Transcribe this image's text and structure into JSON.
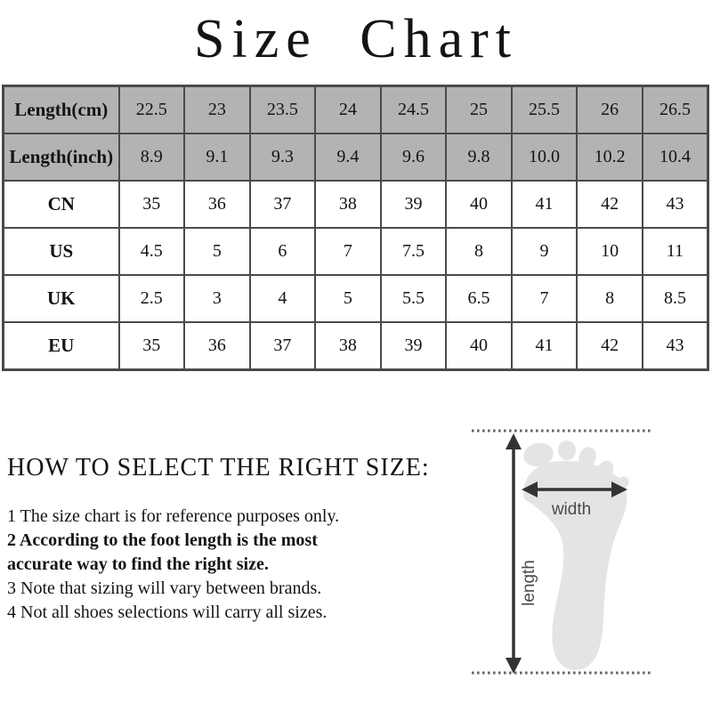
{
  "title": "Size Chart",
  "table": {
    "rows": [
      {
        "label": "Length(cm)",
        "header": true,
        "values": [
          "22.5",
          "23",
          "23.5",
          "24",
          "24.5",
          "25",
          "25.5",
          "26",
          "26.5"
        ]
      },
      {
        "label": "Length(inch)",
        "header": true,
        "values": [
          "8.9",
          "9.1",
          "9.3",
          "9.4",
          "9.6",
          "9.8",
          "10.0",
          "10.2",
          "10.4"
        ]
      },
      {
        "label": "CN",
        "header": false,
        "values": [
          "35",
          "36",
          "37",
          "38",
          "39",
          "40",
          "41",
          "42",
          "43"
        ]
      },
      {
        "label": "US",
        "header": false,
        "values": [
          "4.5",
          "5",
          "6",
          "7",
          "7.5",
          "8",
          "9",
          "10",
          "11"
        ]
      },
      {
        "label": "UK",
        "header": false,
        "values": [
          "2.5",
          "3",
          "4",
          "5",
          "5.5",
          "6.5",
          "7",
          "8",
          "8.5"
        ]
      },
      {
        "label": "EU",
        "header": false,
        "values": [
          "35",
          "36",
          "37",
          "38",
          "39",
          "40",
          "41",
          "42",
          "43"
        ]
      }
    ]
  },
  "guide": {
    "heading": "HOW TO SELECT THE RIGHT SIZE:",
    "note_lines": [
      {
        "text": "1 The size chart is for reference purposes only.",
        "bold": false
      },
      {
        "text": "2 According to the foot length is the most",
        "bold": true
      },
      {
        "text": "accurate way to find the right size.",
        "bold": true
      },
      {
        "text": "3 Note that sizing will vary between brands.",
        "bold": false
      },
      {
        "text": "4 Not all shoes selections will carry all sizes.",
        "bold": false
      }
    ]
  },
  "diagram": {
    "length_label": "length",
    "width_label": "width"
  },
  "colors": {
    "header_bg": "#b3b3b3",
    "table_border": "#4a4a4a",
    "foot_fill": "#e4e4e4",
    "arrow": "#333333",
    "dotted_line": "#666666",
    "diagram_label": "#4a4a4a"
  }
}
